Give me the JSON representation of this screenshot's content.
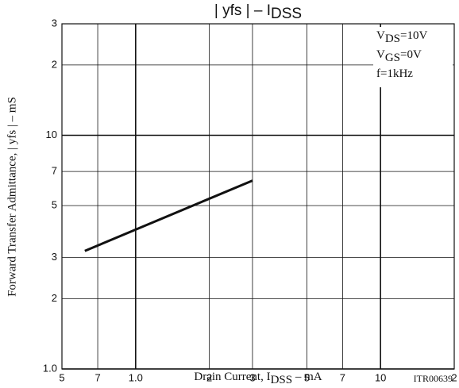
{
  "chart_data": {
    "type": "line",
    "title": {
      "main": "| yfs |  –  I",
      "sub": "DSS"
    },
    "x_label": {
      "main": "Drain Current, I",
      "sub": "DSS",
      "rest": "  –  mA"
    },
    "y_label": "Forward Transfer Admittance, | yfs |  –  mS",
    "code": "ITR00639",
    "annotations": [
      {
        "main": "V",
        "sub": "DS",
        "rest": "=10V"
      },
      {
        "main": "V",
        "sub": "GS",
        "rest": "=0V"
      },
      {
        "main": "f=1kHz"
      }
    ],
    "x_log": true,
    "y_log": true,
    "grid": true,
    "xlim": [
      0.5,
      20
    ],
    "ylim": [
      1,
      30
    ],
    "xticks": [
      {
        "value": 0.5,
        "label": "5"
      },
      {
        "value": 0.7,
        "label": "7"
      },
      {
        "value": 1,
        "label": "1.0"
      },
      2,
      3,
      5,
      7,
      10,
      {
        "value": 20,
        "label": "2"
      }
    ],
    "yticks": [
      {
        "value": 1,
        "label": "1.0"
      },
      2,
      3,
      5,
      7,
      10,
      {
        "value": 20,
        "label": "2"
      },
      {
        "value": 30,
        "label": "3"
      }
    ],
    "series": [
      {
        "color": "#111111",
        "x": [
          0.62,
          3
        ],
        "values": [
          3.2,
          6.4
        ]
      }
    ]
  }
}
